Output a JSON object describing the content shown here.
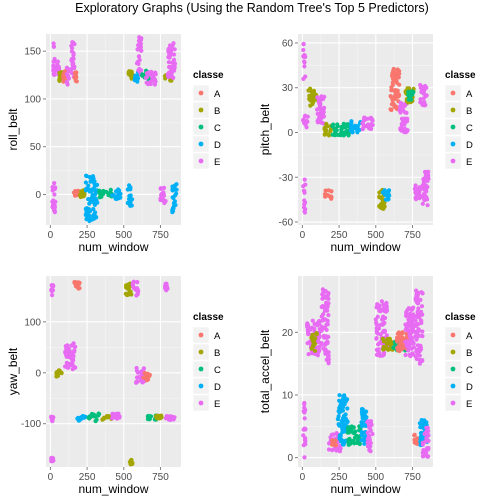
{
  "title": "Exploratory Graphs (Using the Random Tree's Top 5 Predictors)",
  "legend_title": "classe",
  "colors": {
    "A": "#F8766D",
    "B": "#A3A500",
    "C": "#00BF7D",
    "D": "#00B0F6",
    "E": "#E76BF3",
    "panel_bg": "#EBEBEB",
    "grid": "#FFFFFF"
  },
  "chart_data": [
    {
      "type": "scatter",
      "xlabel": "num_window",
      "ylabel": "roll_belt",
      "xlim": [
        -30,
        890
      ],
      "ylim": [
        -32,
        168
      ],
      "xticks": [
        0,
        250,
        500,
        750
      ],
      "xtick_labels": [
        "0",
        "250",
        "500",
        "750"
      ],
      "yticks": [
        0,
        50,
        100,
        150
      ],
      "ytick_labels": [
        "0",
        "50",
        "100",
        "150"
      ],
      "legend": "right",
      "legend_entries": [
        "A",
        "B",
        "C",
        "D",
        "E"
      ],
      "clusters": [
        {
          "class": "E",
          "x": [
            10,
            35
          ],
          "y": [
            -25,
            12
          ]
        },
        {
          "class": "E",
          "x": [
            15,
            32
          ],
          "y": [
            125,
            160
          ]
        },
        {
          "class": "E",
          "x": [
            42,
            60
          ],
          "y": [
            120,
            140
          ]
        },
        {
          "class": "B",
          "x": [
            60,
            80
          ],
          "y": [
            116,
            128
          ]
        },
        {
          "class": "A",
          "x": [
            80,
            110
          ],
          "y": [
            118,
            130
          ]
        },
        {
          "class": "E",
          "x": [
            110,
            130
          ],
          "y": [
            115,
            135
          ]
        },
        {
          "class": "E",
          "x": [
            140,
            165
          ],
          "y": [
            122,
            160
          ]
        },
        {
          "class": "A",
          "x": [
            165,
            180
          ],
          "y": [
            118,
            128
          ]
        },
        {
          "class": "A",
          "x": [
            160,
            200
          ],
          "y": [
            -2,
            4
          ]
        },
        {
          "class": "B",
          "x": [
            200,
            240
          ],
          "y": [
            -3,
            5
          ]
        },
        {
          "class": "D",
          "x": [
            240,
            320
          ],
          "y": [
            -28,
            20
          ]
        },
        {
          "class": "C",
          "x": [
            320,
            420
          ],
          "y": [
            -3,
            5
          ]
        },
        {
          "class": "D",
          "x": [
            420,
            480
          ],
          "y": [
            -5,
            6
          ]
        },
        {
          "class": "D",
          "x": [
            525,
            560
          ],
          "y": [
            -12,
            10
          ]
        },
        {
          "class": "B",
          "x": [
            530,
            560
          ],
          "y": [
            120,
            130
          ]
        },
        {
          "class": "D",
          "x": [
            570,
            600
          ],
          "y": [
            118,
            128
          ]
        },
        {
          "class": "E",
          "x": [
            590,
            620
          ],
          "y": [
            125,
            165
          ]
        },
        {
          "class": "C",
          "x": [
            620,
            680
          ],
          "y": [
            118,
            130
          ]
        },
        {
          "class": "E",
          "x": [
            650,
            720
          ],
          "y": [
            115,
            130
          ]
        },
        {
          "class": "E",
          "x": [
            750,
            790
          ],
          "y": [
            -10,
            8
          ]
        },
        {
          "class": "B",
          "x": [
            780,
            830
          ],
          "y": [
            118,
            128
          ]
        },
        {
          "class": "E",
          "x": [
            800,
            850
          ],
          "y": [
            122,
            160
          ]
        },
        {
          "class": "D",
          "x": [
            830,
            860
          ],
          "y": [
            -20,
            12
          ]
        }
      ]
    },
    {
      "type": "scatter",
      "xlabel": "num_window",
      "ylabel": "pitch_belt",
      "xlim": [
        -30,
        890
      ],
      "ylim": [
        -62,
        66
      ],
      "xticks": [
        0,
        250,
        500,
        750
      ],
      "xtick_labels": [
        "0",
        "250",
        "500",
        "750"
      ],
      "yticks": [
        -60,
        -30,
        0,
        30,
        60
      ],
      "ytick_labels": [
        "-60",
        "-30",
        "0",
        "30",
        "60"
      ],
      "legend": "right",
      "legend_entries": [
        "A",
        "B",
        "C",
        "D",
        "E"
      ],
      "clusters": [
        {
          "class": "E",
          "x": [
            5,
            20
          ],
          "y": [
            -55,
            -30
          ]
        },
        {
          "class": "E",
          "x": [
            5,
            20
          ],
          "y": [
            35,
            60
          ]
        },
        {
          "class": "E",
          "x": [
            5,
            40
          ],
          "y": [
            3,
            12
          ]
        },
        {
          "class": "B",
          "x": [
            40,
            100
          ],
          "y": [
            18,
            30
          ]
        },
        {
          "class": "E",
          "x": [
            100,
            150
          ],
          "y": [
            5,
            25
          ]
        },
        {
          "class": "A",
          "x": [
            150,
            200
          ],
          "y": [
            -45,
            -38
          ]
        },
        {
          "class": "B",
          "x": [
            150,
            200
          ],
          "y": [
            -2,
            6
          ]
        },
        {
          "class": "C",
          "x": [
            200,
            330
          ],
          "y": [
            -2,
            6
          ]
        },
        {
          "class": "D",
          "x": [
            330,
            400
          ],
          "y": [
            0,
            8
          ]
        },
        {
          "class": "E",
          "x": [
            400,
            480
          ],
          "y": [
            2,
            10
          ]
        },
        {
          "class": "B",
          "x": [
            520,
            560
          ],
          "y": [
            -52,
            -38
          ]
        },
        {
          "class": "D",
          "x": [
            540,
            600
          ],
          "y": [
            -45,
            -38
          ]
        },
        {
          "class": "A",
          "x": [
            600,
            660
          ],
          "y": [
            15,
            45
          ]
        },
        {
          "class": "E",
          "x": [
            660,
            720
          ],
          "y": [
            0,
            20
          ]
        },
        {
          "class": "B",
          "x": [
            700,
            760
          ],
          "y": [
            20,
            30
          ]
        },
        {
          "class": "C",
          "x": [
            720,
            760
          ],
          "y": [
            22,
            28
          ]
        },
        {
          "class": "E",
          "x": [
            760,
            800
          ],
          "y": [
            -45,
            -35
          ]
        },
        {
          "class": "E",
          "x": [
            800,
            850
          ],
          "y": [
            18,
            32
          ]
        },
        {
          "class": "E",
          "x": [
            820,
            860
          ],
          "y": [
            -50,
            -25
          ]
        }
      ]
    },
    {
      "type": "scatter",
      "xlabel": "num_window",
      "ylabel": "yaw_belt",
      "xlim": [
        -30,
        890
      ],
      "ylim": [
        -185,
        190
      ],
      "xticks": [
        0,
        250,
        500,
        750
      ],
      "xtick_labels": [
        "0",
        "250",
        "500",
        "750"
      ],
      "yticks": [
        -100,
        0,
        100
      ],
      "ytick_labels": [
        "-100",
        "0",
        "100"
      ],
      "legend": "right",
      "legend_entries": [
        "A",
        "B",
        "C",
        "D",
        "E"
      ],
      "clusters": [
        {
          "class": "E",
          "x": [
            5,
            20
          ],
          "y": [
            150,
            175
          ]
        },
        {
          "class": "E",
          "x": [
            5,
            20
          ],
          "y": [
            -95,
            -85
          ]
        },
        {
          "class": "E",
          "x": [
            5,
            20
          ],
          "y": [
            -175,
            -165
          ]
        },
        {
          "class": "B",
          "x": [
            40,
            80
          ],
          "y": [
            -10,
            5
          ]
        },
        {
          "class": "E",
          "x": [
            100,
            170
          ],
          "y": [
            5,
            60
          ]
        },
        {
          "class": "A",
          "x": [
            160,
            200
          ],
          "y": [
            165,
            180
          ]
        },
        {
          "class": "D",
          "x": [
            180,
            260
          ],
          "y": [
            -95,
            -85
          ]
        },
        {
          "class": "C",
          "x": [
            260,
            350
          ],
          "y": [
            -95,
            -80
          ]
        },
        {
          "class": "B",
          "x": [
            350,
            420
          ],
          "y": [
            -92,
            -85
          ]
        },
        {
          "class": "E",
          "x": [
            420,
            480
          ],
          "y": [
            -90,
            -80
          ]
        },
        {
          "class": "B",
          "x": [
            510,
            560
          ],
          "y": [
            150,
            175
          ]
        },
        {
          "class": "E",
          "x": [
            560,
            600
          ],
          "y": [
            150,
            180
          ]
        },
        {
          "class": "B",
          "x": [
            540,
            560
          ],
          "y": [
            -180,
            -170
          ]
        },
        {
          "class": "E",
          "x": [
            580,
            640
          ],
          "y": [
            -20,
            10
          ]
        },
        {
          "class": "A",
          "x": [
            620,
            680
          ],
          "y": [
            -15,
            0
          ]
        },
        {
          "class": "C",
          "x": [
            660,
            720
          ],
          "y": [
            -92,
            -84
          ]
        },
        {
          "class": "B",
          "x": [
            720,
            760
          ],
          "y": [
            -90,
            -84
          ]
        },
        {
          "class": "E",
          "x": [
            780,
            860
          ],
          "y": [
            -95,
            -85
          ]
        },
        {
          "class": "E",
          "x": [
            780,
            800
          ],
          "y": [
            160,
            175
          ]
        }
      ]
    },
    {
      "type": "scatter",
      "xlabel": "num_window",
      "ylabel": "total_accel_belt",
      "xlim": [
        -30,
        890
      ],
      "ylim": [
        -1.5,
        29
      ],
      "xticks": [
        0,
        250,
        500,
        750
      ],
      "xtick_labels": [
        "0",
        "250",
        "500",
        "750"
      ],
      "yticks": [
        0,
        10,
        20
      ],
      "ytick_labels": [
        "0",
        "10",
        "20"
      ],
      "legend": "right",
      "legend_entries": [
        "A",
        "B",
        "C",
        "D",
        "E"
      ],
      "clusters": [
        {
          "class": "E",
          "x": [
            5,
            20
          ],
          "y": [
            0,
            9
          ]
        },
        {
          "class": "E",
          "x": [
            30,
            120
          ],
          "y": [
            16,
            22
          ]
        },
        {
          "class": "B",
          "x": [
            60,
            100
          ],
          "y": [
            17,
            20
          ]
        },
        {
          "class": "E",
          "x": [
            130,
            180
          ],
          "y": [
            15,
            27
          ]
        },
        {
          "class": "E",
          "x": [
            180,
            260
          ],
          "y": [
            1,
            4
          ]
        },
        {
          "class": "A",
          "x": [
            200,
            240
          ],
          "y": [
            2,
            3
          ]
        },
        {
          "class": "D",
          "x": [
            240,
            310
          ],
          "y": [
            2,
            10
          ]
        },
        {
          "class": "C",
          "x": [
            310,
            400
          ],
          "y": [
            2,
            5
          ]
        },
        {
          "class": "D",
          "x": [
            400,
            440
          ],
          "y": [
            2,
            8
          ]
        },
        {
          "class": "E",
          "x": [
            440,
            480
          ],
          "y": [
            1,
            6
          ]
        },
        {
          "class": "E",
          "x": [
            500,
            580
          ],
          "y": [
            16,
            25
          ]
        },
        {
          "class": "B",
          "x": [
            540,
            620
          ],
          "y": [
            17,
            19
          ]
        },
        {
          "class": "C",
          "x": [
            620,
            700
          ],
          "y": [
            17,
            19
          ]
        },
        {
          "class": "A",
          "x": [
            640,
            720
          ],
          "y": [
            17,
            20
          ]
        },
        {
          "class": "E",
          "x": [
            700,
            760
          ],
          "y": [
            16,
            24
          ]
        },
        {
          "class": "E",
          "x": [
            770,
            820
          ],
          "y": [
            15,
            27
          ]
        },
        {
          "class": "A",
          "x": [
            760,
            800
          ],
          "y": [
            2,
            4
          ]
        },
        {
          "class": "D",
          "x": [
            800,
            850
          ],
          "y": [
            2,
            6
          ]
        },
        {
          "class": "E",
          "x": [
            820,
            860
          ],
          "y": [
            0,
            5
          ]
        }
      ]
    }
  ]
}
